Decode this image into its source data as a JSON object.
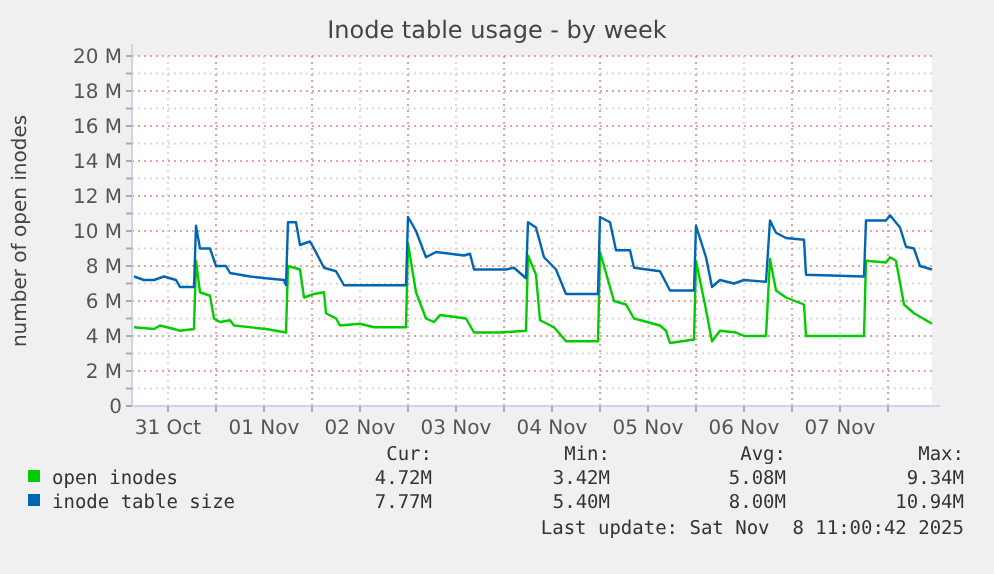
{
  "chart_data": {
    "type": "line",
    "title": "Inode table usage - by week",
    "ylabel": "number of open inodes",
    "xlim": [
      "2025-10-31T03:00",
      "2025-11-08T11:00"
    ],
    "xticks": [
      {
        "value": "2025-10-31T12:00",
        "label": "31 Oct"
      },
      {
        "value": "2025-11-01T00:00",
        "label": null
      },
      {
        "value": "2025-11-01T12:00",
        "label": "01 Nov"
      },
      {
        "value": "2025-11-02T00:00",
        "label": null
      },
      {
        "value": "2025-11-02T12:00",
        "label": "02 Nov"
      },
      {
        "value": "2025-11-03T00:00",
        "label": null
      },
      {
        "value": "2025-11-03T12:00",
        "label": "03 Nov"
      },
      {
        "value": "2025-11-04T00:00",
        "label": null
      },
      {
        "value": "2025-11-04T12:00",
        "label": "04 Nov"
      },
      {
        "value": "2025-11-05T00:00",
        "label": null
      },
      {
        "value": "2025-11-05T12:00",
        "label": "05 Nov"
      },
      {
        "value": "2025-11-06T00:00",
        "label": null
      },
      {
        "value": "2025-11-06T12:00",
        "label": "06 Nov"
      },
      {
        "value": "2025-11-07T00:00",
        "label": null
      },
      {
        "value": "2025-11-07T12:00",
        "label": "07 Nov"
      },
      {
        "value": "2025-11-08T00:00",
        "label": null
      }
    ],
    "ylim": [
      0,
      20
    ],
    "yticks": [
      0,
      {
        "value": 1,
        "label": null
      },
      {
        "value": 2,
        "label": "2 M"
      },
      {
        "value": 3,
        "label": null
      },
      {
        "value": 4,
        "label": "4 M"
      },
      {
        "value": 5,
        "label": null
      },
      {
        "value": 6,
        "label": "6 M"
      },
      {
        "value": 7,
        "label": null
      },
      {
        "value": 8,
        "label": "8 M"
      },
      {
        "value": 9,
        "label": null
      },
      {
        "value": 10,
        "label": "10 M"
      },
      {
        "value": 11,
        "label": null
      },
      {
        "value": 12,
        "label": "12 M"
      },
      {
        "value": 13,
        "label": null
      },
      {
        "value": 14,
        "label": "14 M"
      },
      {
        "value": 15,
        "label": null
      },
      {
        "value": 16,
        "label": "16 M"
      },
      {
        "value": 17,
        "label": null
      },
      {
        "value": 18,
        "label": "18 M"
      },
      {
        "value": 19,
        "label": null
      },
      {
        "value": 20,
        "label": "20 M"
      }
    ],
    "grid": true,
    "legend": "bottom",
    "series": [
      {
        "name": "open inodes",
        "color": "#00cc00",
        "x": [
          "2025-10-31T03:30",
          "2025-10-31T08:30",
          "2025-10-31T10:00",
          "2025-10-31T13:30",
          "2025-10-31T15:00",
          "2025-10-31T18:30",
          "2025-10-31T19:00",
          "2025-10-31T20:00",
          "2025-10-31T22:30",
          "2025-10-31T23:30",
          "2025-11-01T01:00",
          "2025-11-01T03:30",
          "2025-11-01T04:30",
          "2025-11-01T12:30",
          "2025-11-01T17:30",
          "2025-11-01T18:00",
          "2025-11-01T21:00",
          "2025-11-01T22:00",
          "2025-11-02T00:30",
          "2025-11-02T03:00",
          "2025-11-02T03:30",
          "2025-11-02T06:00",
          "2025-11-02T07:00",
          "2025-11-02T12:00",
          "2025-11-02T15:30",
          "2025-11-02T23:30",
          "2025-11-03T00:00",
          "2025-11-03T02:00",
          "2025-11-03T04:30",
          "2025-11-03T06:30",
          "2025-11-03T08:00",
          "2025-11-03T14:30",
          "2025-11-03T16:30",
          "2025-11-03T23:00",
          "2025-11-04T05:30",
          "2025-11-04T06:00",
          "2025-11-04T08:00",
          "2025-11-04T09:00",
          "2025-11-04T12:30",
          "2025-11-04T15:30",
          "2025-11-04T23:30",
          "2025-11-05T00:00",
          "2025-11-05T03:30",
          "2025-11-05T06:30",
          "2025-11-05T08:30",
          "2025-11-05T15:00",
          "2025-11-05T16:30",
          "2025-11-05T17:30",
          "2025-11-05T23:30",
          "2025-11-06T00:00",
          "2025-11-06T02:30",
          "2025-11-06T04:00",
          "2025-11-06T06:00",
          "2025-11-06T10:00",
          "2025-11-06T12:00",
          "2025-11-06T17:30",
          "2025-11-06T18:30",
          "2025-11-06T20:00",
          "2025-11-06T22:30",
          "2025-11-07T03:00",
          "2025-11-07T03:30",
          "2025-11-07T18:00",
          "2025-11-07T18:30",
          "2025-11-07T23:30",
          "2025-11-08T00:30",
          "2025-11-08T02:00",
          "2025-11-08T04:00",
          "2025-11-08T06:30",
          "2025-11-08T11:00"
        ],
        "values": [
          4.5,
          4.4,
          4.6,
          4.4,
          4.3,
          4.4,
          8.3,
          6.5,
          6.3,
          5.0,
          4.8,
          4.9,
          4.6,
          4.4,
          4.2,
          8.0,
          7.8,
          6.2,
          6.4,
          6.5,
          5.3,
          5.0,
          4.6,
          4.7,
          4.5,
          4.5,
          9.3,
          6.5,
          5.0,
          4.8,
          5.2,
          5.0,
          4.2,
          4.2,
          4.3,
          8.6,
          7.5,
          4.9,
          4.5,
          3.7,
          3.7,
          8.8,
          6.0,
          5.8,
          5.0,
          4.6,
          4.3,
          3.6,
          3.8,
          8.3,
          5.5,
          3.7,
          4.3,
          4.2,
          4.0,
          4.0,
          8.4,
          6.6,
          6.2,
          5.8,
          4.0,
          4.0,
          8.3,
          8.2,
          8.5,
          8.3,
          5.8,
          5.3,
          4.7
        ]
      },
      {
        "name": "inode table size",
        "color": "#0066b3",
        "x": [
          "2025-10-31T03:30",
          "2025-10-31T06:00",
          "2025-10-31T08:30",
          "2025-10-31T11:00",
          "2025-10-31T14:00",
          "2025-10-31T15:00",
          "2025-10-31T18:30",
          "2025-10-31T19:00",
          "2025-10-31T20:00",
          "2025-10-31T22:30",
          "2025-11-01T00:00",
          "2025-11-01T02:30",
          "2025-11-01T03:30",
          "2025-11-01T08:30",
          "2025-11-01T12:30",
          "2025-11-01T17:00",
          "2025-11-01T17:30",
          "2025-11-01T18:00",
          "2025-11-01T20:00",
          "2025-11-01T21:00",
          "2025-11-01T23:30",
          "2025-11-02T00:30",
          "2025-11-02T03:00",
          "2025-11-02T06:00",
          "2025-11-02T08:00",
          "2025-11-02T23:30",
          "2025-11-03T00:00",
          "2025-11-03T02:00",
          "2025-11-03T04:30",
          "2025-11-03T07:00",
          "2025-11-03T14:00",
          "2025-11-03T15:30",
          "2025-11-03T16:30",
          "2025-11-04T00:30",
          "2025-11-04T02:30",
          "2025-11-04T05:30",
          "2025-11-04T06:00",
          "2025-11-04T08:00",
          "2025-11-04T10:00",
          "2025-11-04T13:00",
          "2025-11-04T15:30",
          "2025-11-04T23:30",
          "2025-11-05T00:00",
          "2025-11-05T02:30",
          "2025-11-05T04:00",
          "2025-11-05T07:30",
          "2025-11-05T08:30",
          "2025-11-05T15:00",
          "2025-11-05T17:30",
          "2025-11-05T23:30",
          "2025-11-06T00:00",
          "2025-11-06T02:30",
          "2025-11-06T04:00",
          "2025-11-06T06:00",
          "2025-11-06T09:30",
          "2025-11-06T12:00",
          "2025-11-06T17:30",
          "2025-11-06T18:30",
          "2025-11-06T20:00",
          "2025-11-06T22:30",
          "2025-11-07T03:00",
          "2025-11-07T03:30",
          "2025-11-07T18:00",
          "2025-11-07T18:30",
          "2025-11-07T23:30",
          "2025-11-08T00:30",
          "2025-11-08T03:00",
          "2025-11-08T04:30",
          "2025-11-08T06:30",
          "2025-11-08T08:00",
          "2025-11-08T11:00"
        ],
        "values": [
          7.4,
          7.2,
          7.2,
          7.4,
          7.2,
          6.8,
          6.8,
          10.3,
          9.0,
          9.0,
          8.0,
          8.0,
          7.6,
          7.4,
          7.3,
          7.2,
          6.9,
          10.5,
          10.5,
          9.2,
          9.4,
          9.0,
          7.9,
          7.7,
          6.9,
          6.9,
          10.8,
          10.0,
          8.5,
          8.8,
          8.6,
          8.7,
          7.8,
          7.8,
          7.9,
          7.3,
          10.5,
          10.2,
          8.5,
          7.8,
          6.4,
          6.4,
          10.8,
          10.5,
          8.9,
          8.9,
          7.9,
          7.7,
          6.6,
          6.6,
          10.3,
          8.5,
          6.8,
          7.2,
          7.0,
          7.2,
          7.1,
          10.6,
          9.9,
          9.6,
          9.5,
          7.5,
          7.4,
          10.6,
          10.6,
          10.9,
          10.2,
          9.1,
          9.0,
          8.0,
          7.8
        ]
      }
    ],
    "annotations": [
      "Cur:",
      "Min:",
      "Avg:",
      "Max:",
      "4.72M",
      "3.42M",
      "5.08M",
      "9.34M",
      "7.77M",
      "5.40M",
      "8.00M",
      "10.94M",
      "Last update: Sat Nov  8 11:00:42 2025"
    ]
  }
}
